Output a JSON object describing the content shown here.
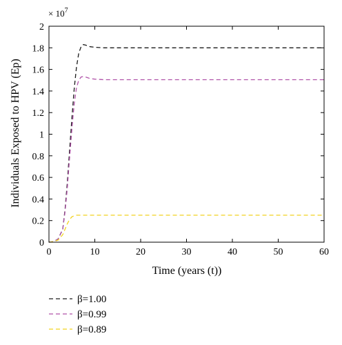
{
  "chart_data": {
    "type": "line",
    "xlabel": "Time (years (t))",
    "ylabel": "Individuals Exposed to HPV (Ep)",
    "xlim": [
      0,
      60
    ],
    "ylim": [
      0,
      2
    ],
    "y_multiplier": "× 10",
    "y_multiplier_exponent": "7",
    "xticks": [
      "0",
      "10",
      "20",
      "30",
      "40",
      "50",
      "60"
    ],
    "yticks": [
      "0",
      "0.2",
      "0.4",
      "0.6",
      "0.8",
      "1",
      "1.2",
      "1.4",
      "1.6",
      "1.8",
      "2"
    ],
    "grid": false,
    "legend_position": "bottom-left, below plot",
    "series": [
      {
        "name": "β=1.00",
        "color": "#1a1a1a",
        "dash": "dashed",
        "x": [
          0,
          1,
          2,
          3,
          3.5,
          4,
          4.5,
          5,
          5.5,
          6,
          6.5,
          7,
          7.5,
          8,
          9,
          10,
          12,
          15,
          20,
          30,
          40,
          50,
          60
        ],
        "y": [
          0,
          0.005,
          0.03,
          0.12,
          0.3,
          0.55,
          0.85,
          1.15,
          1.42,
          1.62,
          1.75,
          1.81,
          1.83,
          1.825,
          1.81,
          1.805,
          1.8,
          1.8,
          1.8,
          1.8,
          1.8,
          1.8,
          1.8
        ]
      },
      {
        "name": "β=0.99",
        "color": "#b052a8",
        "dash": "dashed",
        "x": [
          0,
          1,
          2,
          3,
          3.5,
          4,
          4.5,
          5,
          5.5,
          6,
          6.5,
          7,
          7.5,
          8,
          9,
          10,
          12,
          15,
          20,
          30,
          40,
          50,
          60
        ],
        "y": [
          0,
          0.005,
          0.03,
          0.12,
          0.28,
          0.5,
          0.78,
          1.05,
          1.28,
          1.43,
          1.5,
          1.53,
          1.535,
          1.53,
          1.515,
          1.51,
          1.505,
          1.505,
          1.505,
          1.505,
          1.505,
          1.505,
          1.505
        ]
      },
      {
        "name": "β=0.89",
        "color": "#f2d21e",
        "dash": "dashed",
        "x": [
          0,
          1,
          2,
          3,
          3.5,
          4,
          4.5,
          5,
          5.5,
          6,
          7,
          8,
          10,
          15,
          20,
          30,
          40,
          50,
          60
        ],
        "y": [
          0,
          0.005,
          0.02,
          0.07,
          0.12,
          0.17,
          0.21,
          0.235,
          0.245,
          0.25,
          0.25,
          0.25,
          0.25,
          0.25,
          0.25,
          0.25,
          0.25,
          0.25,
          0.25
        ]
      }
    ]
  }
}
